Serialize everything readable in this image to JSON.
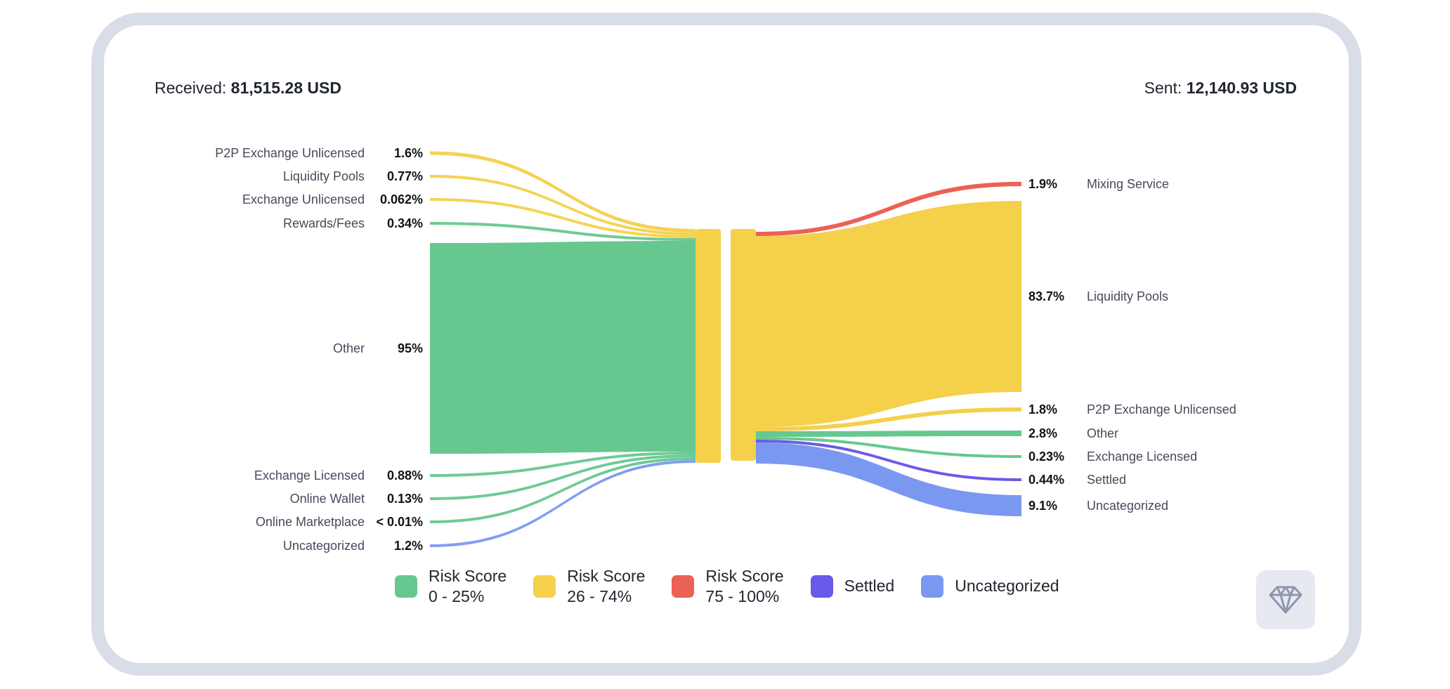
{
  "header": {
    "received_label": "Received:",
    "received_value": "81,515.28 USD",
    "sent_label": "Sent:",
    "sent_value": "12,140.93 USD"
  },
  "colors": {
    "risk_low": "#66c88f",
    "risk_mid": "#f4d04b",
    "risk_high": "#ec6155",
    "settled": "#6a5ae9",
    "uncategorized": "#7b98f0"
  },
  "chart_data": {
    "type": "sankey",
    "received": {
      "total_label": "Received: 81,515.28 USD",
      "flows": [
        {
          "label": "P2P Exchange Unlicensed",
          "pct": "1.6%",
          "value": 1.6,
          "risk": "risk_mid"
        },
        {
          "label": "Liquidity Pools",
          "pct": "0.77%",
          "value": 0.77,
          "risk": "risk_mid"
        },
        {
          "label": "Exchange Unlicensed",
          "pct": "0.062%",
          "value": 0.062,
          "risk": "risk_mid"
        },
        {
          "label": "Rewards/Fees",
          "pct": "0.34%",
          "value": 0.34,
          "risk": "risk_low"
        },
        {
          "label": "Other",
          "pct": "95%",
          "value": 95,
          "risk": "risk_low"
        },
        {
          "label": "Exchange Licensed",
          "pct": "0.88%",
          "value": 0.88,
          "risk": "risk_low"
        },
        {
          "label": "Online Wallet",
          "pct": "0.13%",
          "value": 0.13,
          "risk": "risk_low"
        },
        {
          "label": "Online Marketplace",
          "pct": "< 0.01%",
          "value": 0.01,
          "risk": "risk_low"
        },
        {
          "label": "Uncategorized",
          "pct": "1.2%",
          "value": 1.2,
          "risk": "uncategorized"
        }
      ]
    },
    "sent": {
      "total_label": "Sent: 12,140.93 USD",
      "flows": [
        {
          "label": "Mixing Service",
          "pct": "1.9%",
          "value": 1.9,
          "risk": "risk_high"
        },
        {
          "label": "Liquidity Pools",
          "pct": "83.7%",
          "value": 83.7,
          "risk": "risk_mid"
        },
        {
          "label": "P2P Exchange Unlicensed",
          "pct": "1.8%",
          "value": 1.8,
          "risk": "risk_mid"
        },
        {
          "label": "Other",
          "pct": "2.8%",
          "value": 2.8,
          "risk": "risk_low"
        },
        {
          "label": "Exchange Licensed",
          "pct": "0.23%",
          "value": 0.23,
          "risk": "risk_low"
        },
        {
          "label": "Settled",
          "pct": "0.44%",
          "value": 0.44,
          "risk": "settled"
        },
        {
          "label": "Uncategorized",
          "pct": "9.1%",
          "value": 9.1,
          "risk": "uncategorized"
        }
      ]
    }
  },
  "legend": [
    {
      "line1": "Risk Score",
      "line2": "0 - 25%",
      "color_key": "risk_low"
    },
    {
      "line1": "Risk Score",
      "line2": "26 - 74%",
      "color_key": "risk_mid"
    },
    {
      "line1": "Risk Score",
      "line2": "75 - 100%",
      "color_key": "risk_high"
    },
    {
      "line1": "Settled",
      "line2": "",
      "color_key": "settled"
    },
    {
      "line1": "Uncategorized",
      "line2": "",
      "color_key": "uncategorized"
    }
  ],
  "gem_button": {
    "icon": "diamond-icon"
  }
}
